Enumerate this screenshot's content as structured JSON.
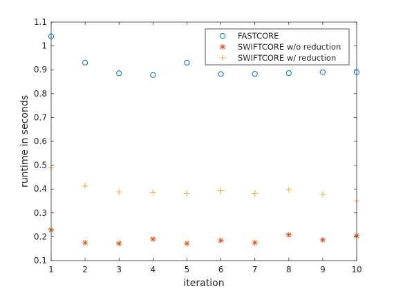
{
  "chart_data": {
    "type": "scatter",
    "xlabel": "iteration",
    "ylabel": "runtime in seconds",
    "xlim": [
      1,
      10
    ],
    "ylim": [
      0.1,
      1.1
    ],
    "xticks": [
      1,
      2,
      3,
      4,
      5,
      6,
      7,
      8,
      9,
      10
    ],
    "yticks": [
      0.1,
      0.2,
      0.3,
      0.4,
      0.5,
      0.6,
      0.7,
      0.8,
      0.9,
      1,
      1.1
    ],
    "ytick_labels": [
      "0.1",
      "0.2",
      "0.3",
      "0.4",
      "0.5",
      "0.6",
      "0.7",
      "0.8",
      "0.9",
      "1",
      "1.1"
    ],
    "grid": false,
    "legend_position": "top-right",
    "x": [
      1,
      2,
      3,
      4,
      5,
      6,
      7,
      8,
      9,
      10
    ],
    "series": [
      {
        "name": "FASTCORE",
        "marker": "circle",
        "color": "#0072BD",
        "values": [
          1.04,
          0.93,
          0.885,
          0.878,
          0.93,
          0.882,
          0.883,
          0.886,
          0.89,
          0.89
        ]
      },
      {
        "name": "SWIFTCORE w/o reduction",
        "marker": "asterisk",
        "color": "#D95319",
        "values": [
          0.228,
          0.175,
          0.172,
          0.19,
          0.172,
          0.184,
          0.175,
          0.208,
          0.187,
          0.204
        ]
      },
      {
        "name": "SWIFTCORE w/ reduction",
        "marker": "plus",
        "color": "#EDB120",
        "values": [
          0.49,
          0.412,
          0.388,
          0.385,
          0.382,
          0.393,
          0.382,
          0.398,
          0.378,
          0.35
        ]
      }
    ]
  }
}
